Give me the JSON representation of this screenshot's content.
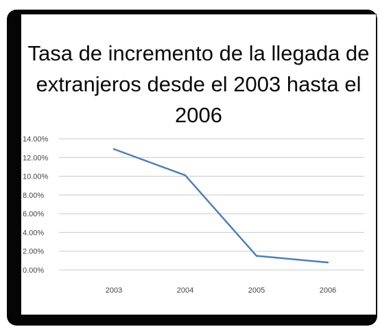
{
  "chart_data": {
    "type": "line",
    "title_lines": [
      "Tasa de incremento de la llegada de",
      "extranjeros desde el 2003 hasta el",
      "2006"
    ],
    "categories": [
      "2003",
      "2004",
      "2005",
      "2006"
    ],
    "series": [
      {
        "values": [
          0.129,
          0.101,
          0.015,
          0.008
        ],
        "color": "#4a7ebb"
      }
    ],
    "y_ticks": [
      "0.00%",
      "2.00%",
      "4.00%",
      "6.00%",
      "8.00%",
      "10.00%",
      "12.00%",
      "14.00%"
    ],
    "ylim": [
      0,
      0.14
    ],
    "grid": true,
    "legend": "none"
  }
}
